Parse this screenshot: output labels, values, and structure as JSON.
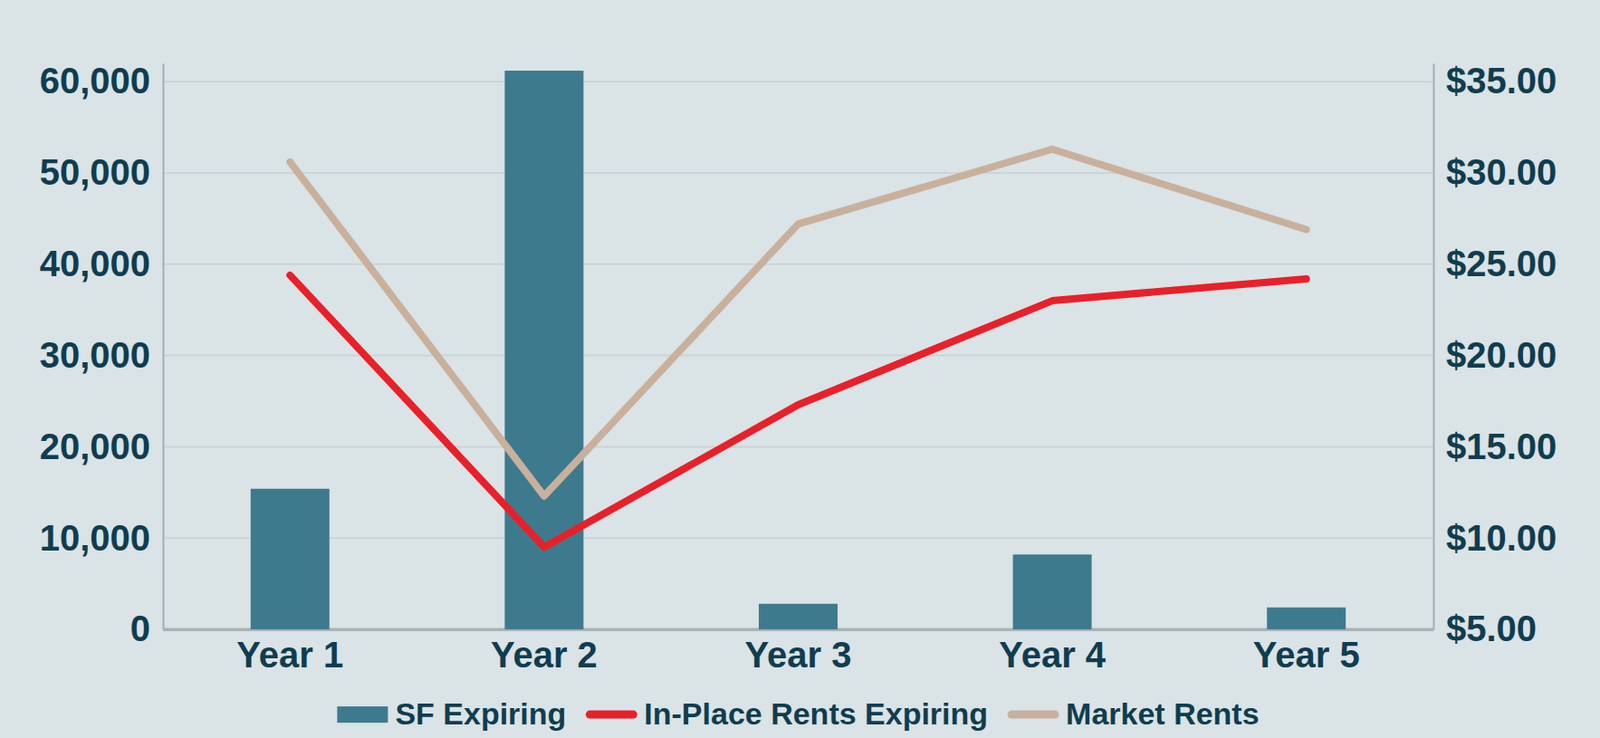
{
  "chart_data": {
    "type": "bar",
    "categories": [
      "Year 1",
      "Year 2",
      "Year 3",
      "Year 4",
      "Year 5"
    ],
    "series": [
      {
        "name": "SF Expiring",
        "type": "bar",
        "color": "#3e7a8d",
        "values": [
          15400,
          61200,
          2800,
          8200,
          2400
        ]
      },
      {
        "name": "In-Place Rents Expiring",
        "type": "line",
        "color": "#e8202a",
        "axis": "y2",
        "values": [
          24.4,
          9.5,
          17.3,
          23.0,
          24.2
        ]
      },
      {
        "name": "Market Rents",
        "type": "line",
        "color": "#c9b09c",
        "axis": "y2",
        "values": [
          30.6,
          12.3,
          27.2,
          31.3,
          26.9
        ]
      }
    ],
    "ylim": [
      0,
      62000
    ],
    "yticks": [
      0,
      {
        "value": 10000,
        "label": "10,000"
      },
      {
        "value": 20000,
        "label": "20,000"
      },
      {
        "value": 30000,
        "label": "30,000"
      },
      {
        "value": 40000,
        "label": "40,000"
      },
      {
        "value": 50000,
        "label": "50,000"
      },
      {
        "value": 60000,
        "label": "60,000"
      }
    ],
    "y2lim": [
      5,
      36
    ],
    "y2ticks": [
      {
        "value": 5,
        "label": "$5.00"
      },
      {
        "value": 10,
        "label": "$10.00"
      },
      {
        "value": 15,
        "label": "$15.00"
      },
      {
        "value": 20,
        "label": "$20.00"
      },
      {
        "value": 25,
        "label": "$25.00"
      },
      {
        "value": 30,
        "label": "$30.00"
      },
      {
        "value": 35,
        "label": "$35.00"
      }
    ],
    "grid": true,
    "legend": "bottom"
  }
}
